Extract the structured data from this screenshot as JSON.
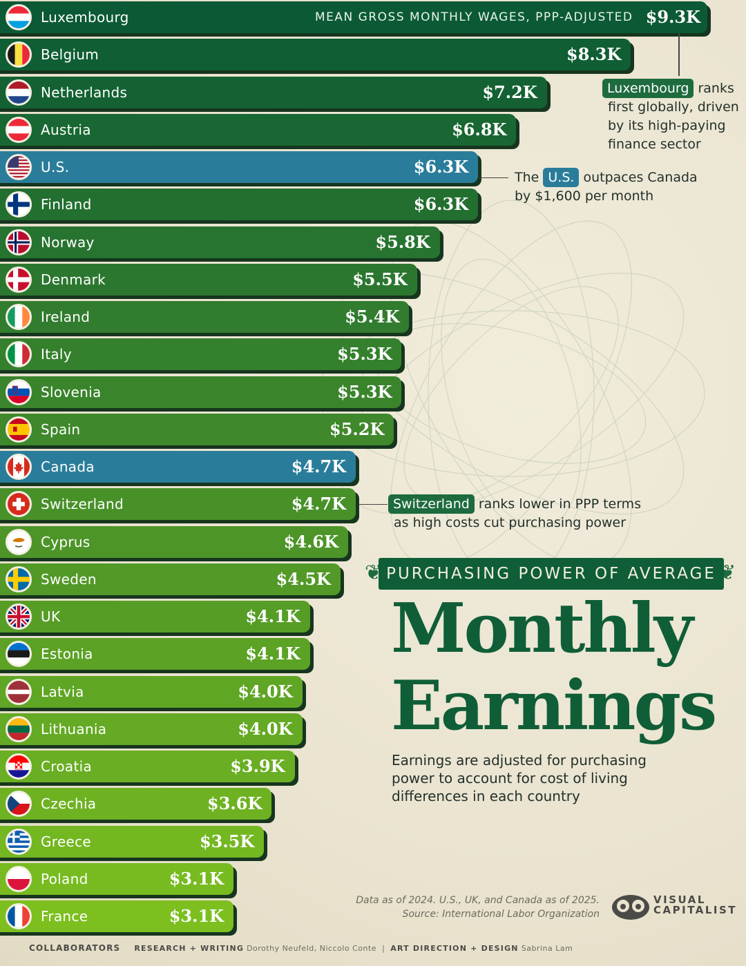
{
  "chart_data": {
    "type": "bar",
    "title": "Monthly Earnings",
    "title_lines": [
      "Monthly",
      "Earnings"
    ],
    "kicker": "PURCHASING POWER OF AVERAGE",
    "subtitle": "MEAN GROSS MONTHLY WAGES, PPP-ADJUSTED",
    "description": "Earnings are adjusted for purchasing power to account for cost of living differences in each country",
    "unit": "USD thousands per month",
    "categories": [
      "Luxembourg",
      "Belgium",
      "Netherlands",
      "Austria",
      "U.S.",
      "Finland",
      "Norway",
      "Denmark",
      "Ireland",
      "Italy",
      "Slovenia",
      "Spain",
      "Canada",
      "Switzerland",
      "Cyprus",
      "Sweden",
      "UK",
      "Estonia",
      "Latvia",
      "Lithuania",
      "Croatia",
      "Czechia",
      "Greece",
      "Poland",
      "France"
    ],
    "values": [
      9.3,
      8.3,
      7.2,
      6.8,
      6.3,
      6.3,
      5.8,
      5.5,
      5.4,
      5.3,
      5.3,
      5.2,
      4.7,
      4.7,
      4.6,
      4.5,
      4.1,
      4.1,
      4.0,
      4.0,
      3.9,
      3.6,
      3.5,
      3.1,
      3.1
    ],
    "labels": [
      "$9.3K",
      "$8.3K",
      "$7.2K",
      "$6.8K",
      "$6.3K",
      "$6.3K",
      "$5.8K",
      "$5.5K",
      "$5.4K",
      "$5.3K",
      "$5.3K",
      "$5.2K",
      "$4.7K",
      "$4.7K",
      "$4.6K",
      "$4.5K",
      "$4.1K",
      "$4.1K",
      "$4.0K",
      "$4.0K",
      "$3.9K",
      "$3.6K",
      "$3.5K",
      "$3.1K",
      "$3.1K"
    ],
    "flags": [
      "flag-luxembourg-icon",
      "flag-belgium-icon",
      "flag-netherlands-icon",
      "flag-austria-icon",
      "flag-us-icon",
      "flag-finland-icon",
      "flag-norway-icon",
      "flag-denmark-icon",
      "flag-ireland-icon",
      "flag-italy-icon",
      "flag-slovenia-icon",
      "flag-spain-icon",
      "flag-canada-icon",
      "flag-switzerland-icon",
      "flag-cyprus-icon",
      "flag-sweden-icon",
      "flag-uk-icon",
      "flag-estonia-icon",
      "flag-latvia-icon",
      "flag-lithuania-icon",
      "flag-croatia-icon",
      "flag-czechia-icon",
      "flag-greece-icon",
      "flag-poland-icon",
      "flag-france-icon"
    ],
    "highlighted": [
      "U.S.",
      "Canada"
    ],
    "colors": {
      "top": "#0b5a35",
      "bottom": "#7cbf1f",
      "highlight": "#2a7d9a",
      "shadow": "#17351f"
    },
    "orientation": "horizontal"
  },
  "annotations": {
    "luxembourg": {
      "tag": "Luxembourg",
      "text_1": "ranks",
      "text_2": "first globally, driven",
      "text_3": "by its high-paying",
      "text_4": "finance sector"
    },
    "us": {
      "text_pre": "The",
      "tag": "U.S.",
      "text_post": "outpaces Canada",
      "text_2": "by $1,600 per month"
    },
    "switzerland": {
      "tag": "Switzerland",
      "text_1": "ranks lower in PPP terms",
      "text_2": "as high costs cut purchasing power"
    }
  },
  "footer": {
    "note_1": "Data as of 2024. U.S., UK, and Canada as of 2025.",
    "note_2": "Source: International Labor Organization",
    "brand_1": "VISUAL",
    "brand_2": "CAPITALIST",
    "collaborators": "COLLABORATORS",
    "research_label": "RESEARCH + WRITING",
    "research_names": "Dorothy Neufeld, Niccolo Conte",
    "design_label": "ART DIRECTION + DESIGN",
    "design_names": "Sabrina Lam"
  }
}
